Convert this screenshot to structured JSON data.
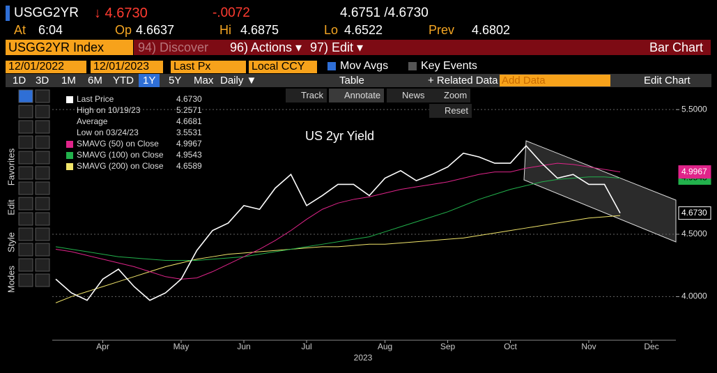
{
  "header": {
    "ticker": "USGG2YR",
    "last": "↓ 4.6730",
    "change": "-.0072",
    "bid_ask": "4.6751 /4.6730",
    "stats": [
      {
        "label": "At",
        "value": "6:04"
      },
      {
        "label": "Op",
        "value": "4.6637"
      },
      {
        "label": "Hi",
        "value": "4.6875"
      },
      {
        "label": "Lo",
        "value": "4.6522"
      },
      {
        "label": "Prev",
        "value": "4.6802"
      }
    ]
  },
  "toolbar": {
    "security": "USGG2YR Index",
    "discover": "94) Discover",
    "actions": "96) Actions ▾",
    "edit": "97) Edit ▾",
    "function": "Bar Chart",
    "start_date": "12/01/2022",
    "end_date": "12/01/2023",
    "field": "Last Px",
    "currency": "Local CCY",
    "mov_avgs": "Mov Avgs",
    "key_events": "Key Events",
    "periods": [
      "1D",
      "3D",
      "1M",
      "6M",
      "YTD",
      "1Y",
      "5Y",
      "Max"
    ],
    "frequency": "Daily ▼",
    "table": "Table",
    "related": "+ Related Data",
    "add_data": "Add Data",
    "edit_chart": "Edit Chart",
    "chart_buttons": [
      "Track",
      "Annotate",
      "News",
      "Zoom",
      "Reset"
    ],
    "side_tabs": [
      "Favorites",
      "Edit",
      "Style",
      "Modes"
    ]
  },
  "chart_data": {
    "type": "line",
    "title": "US 2yr Yield",
    "x_label": "2023",
    "categories": [
      null,
      null,
      null,
      "Apr",
      null,
      null,
      null,
      null,
      "May",
      null,
      null,
      null,
      "Jun",
      null,
      null,
      null,
      "Jul",
      null,
      null,
      null,
      null,
      "Aug",
      null,
      null,
      null,
      "Sep",
      null,
      null,
      null,
      "Oct",
      null,
      null,
      null,
      null,
      "Nov",
      null,
      null,
      null,
      "Dec"
    ],
    "legend": [
      {
        "label": "Last Price",
        "value": "4.6730",
        "color": "#ffffff"
      },
      {
        "label": "High on 10/19/23",
        "value": "5.2571"
      },
      {
        "label": "Average",
        "value": "4.6681"
      },
      {
        "label": "Low on 03/24/23",
        "value": "3.5531"
      }
    ],
    "series": [
      {
        "name": "Last Price",
        "color": "#ffffff",
        "last_label": "4.6730",
        "values": [
          4.14,
          4.03,
          3.97,
          4.14,
          4.22,
          4.08,
          3.97,
          4.03,
          4.14,
          4.37,
          4.53,
          4.59,
          4.73,
          4.7,
          4.87,
          4.98,
          4.73,
          4.81,
          4.9,
          4.9,
          4.81,
          4.95,
          5.01,
          4.93,
          4.98,
          5.04,
          5.15,
          5.12,
          5.07,
          5.07,
          5.21,
          5.07,
          4.95,
          4.98,
          4.9,
          4.9,
          4.67,
          null,
          null
        ]
      },
      {
        "name": "SMAVG (50)  on Close",
        "color": "#e0248a",
        "last_label": "4.9967",
        "values": [
          4.38,
          4.36,
          4.33,
          4.3,
          4.27,
          4.24,
          4.2,
          4.16,
          4.14,
          4.15,
          4.2,
          4.26,
          4.32,
          4.38,
          4.45,
          4.53,
          4.62,
          4.7,
          4.75,
          4.78,
          4.8,
          4.83,
          4.86,
          4.88,
          4.9,
          4.92,
          4.95,
          4.98,
          5.0,
          5.0,
          5.03,
          5.05,
          5.07,
          5.06,
          5.04,
          5.02,
          5.0,
          null,
          null
        ]
      },
      {
        "name": "SMAVG (100)  on Close",
        "color": "#22b14c",
        "last_label": "4.9543",
        "values": [
          4.4,
          4.38,
          4.36,
          4.34,
          4.32,
          4.31,
          4.3,
          4.29,
          4.29,
          4.29,
          4.3,
          4.31,
          4.32,
          4.34,
          4.36,
          4.38,
          4.4,
          4.42,
          4.44,
          4.46,
          4.48,
          4.52,
          4.56,
          4.6,
          4.64,
          4.68,
          4.73,
          4.78,
          4.82,
          4.86,
          4.89,
          4.92,
          4.94,
          4.95,
          4.96,
          4.96,
          4.95,
          null,
          null
        ]
      },
      {
        "name": "SMAVG (200)  on Close",
        "color": "#f2e66b",
        "last_label": "4.6589",
        "values": [
          3.95,
          4.0,
          4.04,
          4.08,
          4.12,
          4.16,
          4.2,
          4.24,
          4.27,
          4.3,
          4.32,
          4.34,
          4.35,
          4.36,
          4.37,
          4.38,
          4.39,
          4.4,
          4.4,
          4.41,
          4.42,
          4.42,
          4.43,
          4.44,
          4.45,
          4.46,
          4.47,
          4.49,
          4.51,
          4.53,
          4.55,
          4.57,
          4.59,
          4.61,
          4.63,
          4.64,
          4.65,
          null,
          null
        ]
      }
    ],
    "ylim": [
      3.65,
      5.68
    ],
    "yticks": [
      {
        "value": 4.0,
        "label": "4.0000"
      },
      {
        "value": 4.5,
        "label": "4.5000"
      },
      {
        "value": 5.5,
        "label": "5.5000"
      }
    ],
    "grid": true
  }
}
